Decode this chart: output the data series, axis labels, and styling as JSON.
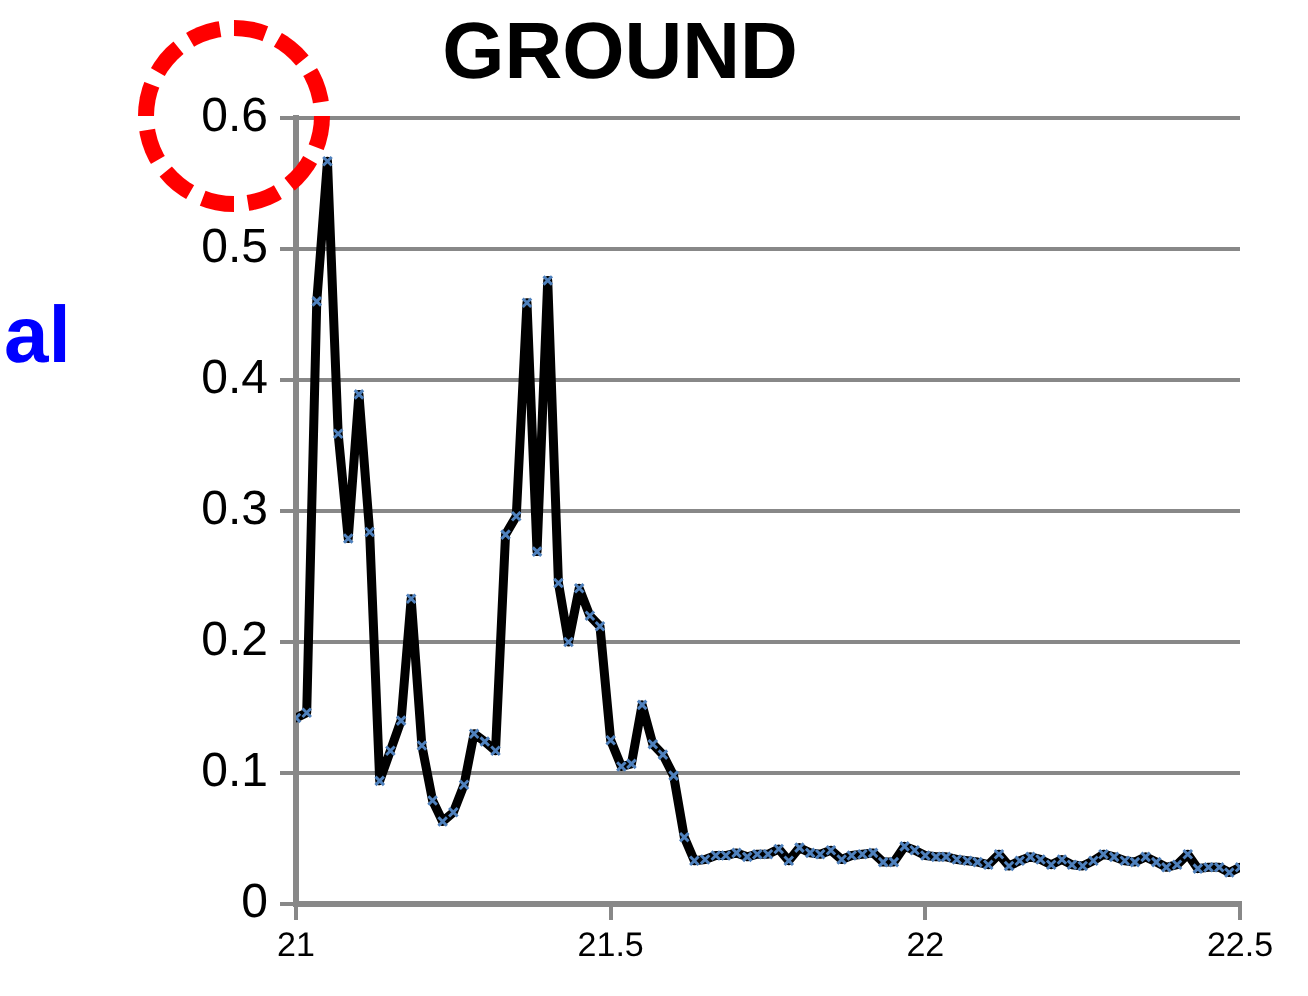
{
  "chart_data": {
    "type": "line",
    "title": "GROUND",
    "ylabel": "al",
    "x": [
      21,
      21.017,
      21.033,
      21.05,
      21.067,
      21.083,
      21.1,
      21.117,
      21.133,
      21.15,
      21.167,
      21.183,
      21.2,
      21.217,
      21.233,
      21.25,
      21.267,
      21.283,
      21.3,
      21.317,
      21.333,
      21.35,
      21.367,
      21.383,
      21.4,
      21.417,
      21.433,
      21.45,
      21.467,
      21.483,
      21.5,
      21.517,
      21.533,
      21.55,
      21.567,
      21.583,
      21.6,
      21.617,
      21.633,
      21.65,
      21.667,
      21.683,
      21.7,
      21.717,
      21.733,
      21.75,
      21.767,
      21.783,
      21.8,
      21.817,
      21.833,
      21.85,
      21.867,
      21.883,
      21.9,
      21.917,
      21.933,
      21.95,
      21.967,
      21.983,
      22,
      22.017,
      22.033,
      22.05,
      22.067,
      22.083,
      22.1,
      22.117,
      22.133,
      22.15,
      22.167,
      22.183,
      22.2,
      22.217,
      22.233,
      22.25,
      22.267,
      22.283,
      22.3,
      22.317,
      22.333,
      22.35,
      22.367,
      22.383,
      22.4,
      22.417,
      22.433,
      22.45,
      22.467,
      22.483,
      22.5
    ],
    "series": [
      {
        "color": "#000000",
        "values": [
          0.142,
          0.146,
          0.46,
          0.567,
          0.359,
          0.279,
          0.389,
          0.284,
          0.094,
          0.117,
          0.14,
          0.233,
          0.121,
          0.079,
          0.063,
          0.07,
          0.091,
          0.13,
          0.124,
          0.117,
          0.282,
          0.296,
          0.459,
          0.269,
          0.476,
          0.245,
          0.2,
          0.241,
          0.22,
          0.212,
          0.125,
          0.105,
          0.107,
          0.152,
          0.122,
          0.114,
          0.098,
          0.051,
          0.033,
          0.034,
          0.037,
          0.037,
          0.039,
          0.036,
          0.038,
          0.038,
          0.042,
          0.033,
          0.043,
          0.039,
          0.038,
          0.041,
          0.034,
          0.037,
          0.038,
          0.039,
          0.032,
          0.032,
          0.044,
          0.041,
          0.037,
          0.036,
          0.036,
          0.034,
          0.033,
          0.032,
          0.03,
          0.038,
          0.029,
          0.033,
          0.036,
          0.034,
          0.03,
          0.034,
          0.03,
          0.029,
          0.033,
          0.038,
          0.036,
          0.033,
          0.032,
          0.036,
          0.032,
          0.028,
          0.03,
          0.038,
          0.027,
          0.028,
          0.028,
          0.024,
          0.028
        ]
      }
    ],
    "xlim": [
      21,
      22.5
    ],
    "xticks": [
      21,
      21.5,
      22,
      22.5
    ],
    "ylim": [
      0,
      0.6
    ],
    "yticks": [
      0,
      0.1,
      0.2,
      0.3,
      0.4,
      0.5,
      0.6
    ],
    "grid": "y",
    "legend": false,
    "marker": "cross",
    "line_style": "solid"
  }
}
